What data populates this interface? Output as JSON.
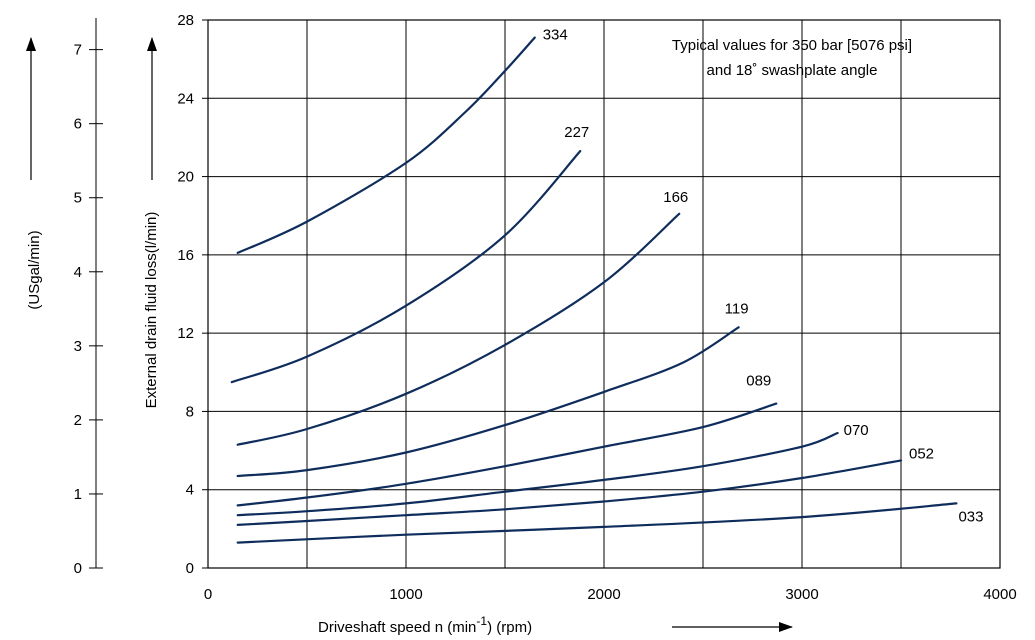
{
  "chart_data": {
    "type": "line",
    "note_lines": [
      "Typical values for 350 bar [5076 psi]",
      "and 18˚ swashplate angle"
    ],
    "xlabel": "Driveshaft speed n (min⁻¹) (rpm)",
    "xlabel_main": "Driveshaft speed n (min",
    "xlabel_sup": "-1",
    "xlabel_tail": ") (rpm)",
    "ylabel": "External drain fluid loss(l/min)",
    "y2label": "(USgal/min)",
    "xlim": [
      0,
      4000
    ],
    "ylim": [
      0,
      28
    ],
    "y2lim": [
      0,
      7.4
    ],
    "xticks": [
      0,
      1000,
      2000,
      3000,
      4000
    ],
    "yticks": [
      0,
      4,
      8,
      12,
      16,
      20,
      24,
      28
    ],
    "y2ticks": [
      0,
      1,
      2,
      3,
      4,
      5,
      6,
      7
    ],
    "grid": true,
    "line_color": "#0f2d5c",
    "series": [
      {
        "name": "334",
        "x": [
          150,
          500,
          1000,
          1300,
          1500,
          1650
        ],
        "y": [
          16.1,
          17.7,
          20.7,
          23.3,
          25.4,
          27.1
        ]
      },
      {
        "name": "227",
        "x": [
          120,
          500,
          1000,
          1500,
          1880
        ],
        "y": [
          9.5,
          10.8,
          13.4,
          17.0,
          21.3
        ]
      },
      {
        "name": "166",
        "x": [
          150,
          500,
          1000,
          1500,
          2000,
          2380
        ],
        "y": [
          6.3,
          7.1,
          8.9,
          11.4,
          14.6,
          18.1
        ]
      },
      {
        "name": "119",
        "x": [
          150,
          500,
          1000,
          1500,
          2000,
          2400,
          2680
        ],
        "y": [
          4.7,
          5.0,
          5.9,
          7.3,
          9.0,
          10.5,
          12.3
        ]
      },
      {
        "name": "089",
        "x": [
          150,
          500,
          1000,
          1500,
          2000,
          2500,
          2870
        ],
        "y": [
          3.2,
          3.6,
          4.3,
          5.2,
          6.2,
          7.2,
          8.4
        ]
      },
      {
        "name": "070",
        "x": [
          150,
          500,
          1000,
          1500,
          2000,
          2500,
          3000,
          3180
        ],
        "y": [
          2.7,
          2.9,
          3.3,
          3.9,
          4.5,
          5.2,
          6.2,
          6.9
        ]
      },
      {
        "name": "052",
        "x": [
          150,
          500,
          1000,
          1500,
          2000,
          2500,
          3000,
          3500
        ],
        "y": [
          2.2,
          2.4,
          2.7,
          3.0,
          3.4,
          3.9,
          4.6,
          5.5
        ]
      },
      {
        "name": "033",
        "x": [
          150,
          1000,
          2000,
          3000,
          3780
        ],
        "y": [
          1.3,
          1.7,
          2.1,
          2.6,
          3.3
        ]
      }
    ]
  }
}
